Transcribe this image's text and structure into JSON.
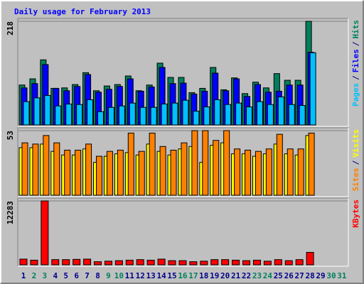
{
  "chart_data": [
    {
      "type": "bar",
      "title": "Daily usage for February 2013",
      "ylim": [
        0,
        218
      ],
      "yticks": [
        218
      ],
      "legend_separator": "/",
      "series": [
        {
          "name": "Hits",
          "color": "#00805c",
          "values": [
            84,
            97,
            137,
            77,
            78,
            85,
            110,
            72,
            82,
            85,
            103,
            72,
            84,
            130,
            100,
            100,
            68,
            77,
            121,
            74,
            99,
            66,
            90,
            78,
            108,
            94,
            94,
            218,
            null,
            null,
            null
          ]
        },
        {
          "name": "Files",
          "color": "#0000ff",
          "values": [
            78,
            87,
            127,
            77,
            72,
            81,
            106,
            69,
            75,
            81,
            97,
            71,
            80,
            121,
            87,
            88,
            65,
            71,
            109,
            72,
            97,
            60,
            85,
            69,
            71,
            84,
            84,
            153,
            null,
            null,
            null
          ]
        },
        {
          "name": "Pages",
          "color": "#00c0ff",
          "values": [
            49,
            57,
            62,
            40,
            44,
            43,
            53,
            28,
            37,
            40,
            46,
            37,
            37,
            44,
            46,
            52,
            29,
            38,
            53,
            43,
            46,
            38,
            49,
            43,
            59,
            43,
            41,
            152,
            null,
            null,
            null
          ]
        }
      ]
    },
    {
      "type": "bar",
      "ylim": [
        0,
        53
      ],
      "yticks": [
        53
      ],
      "legend_separator": "/",
      "series": [
        {
          "name": "Visits",
          "color": "#ffff00",
          "values": [
            39,
            39,
            42,
            36,
            33,
            33,
            38,
            27,
            32,
            34,
            35,
            33,
            42,
            36,
            33,
            38,
            40,
            27,
            41,
            43,
            34,
            34,
            32,
            34,
            42,
            34,
            33,
            49,
            null,
            null,
            null
          ]
        },
        {
          "name": "Sites",
          "color": "#ff8000",
          "values": [
            43,
            42,
            49,
            43,
            37,
            37,
            42,
            32,
            36,
            37,
            51,
            36,
            51,
            40,
            37,
            43,
            53,
            53,
            45,
            53,
            38,
            37,
            36,
            38,
            50,
            38,
            38,
            51,
            null,
            null,
            null
          ]
        }
      ]
    },
    {
      "type": "bar",
      "ylim": [
        0,
        12283
      ],
      "yticks": [
        12283
      ],
      "categories": [
        "1",
        "2",
        "3",
        "4",
        "5",
        "6",
        "7",
        "8",
        "9",
        "10",
        "11",
        "12",
        "13",
        "14",
        "15",
        "16",
        "17",
        "18",
        "19",
        "20",
        "21",
        "22",
        "23",
        "24",
        "25",
        "26",
        "27",
        "28",
        "29",
        "30",
        "31"
      ],
      "category_colors": [
        "#00008b",
        "#00805c",
        "#00805c",
        "#00008b",
        "#00008b",
        "#00008b",
        "#00008b",
        "#00008b",
        "#00805c",
        "#00805c",
        "#00008b",
        "#00008b",
        "#00008b",
        "#00008b",
        "#00008b",
        "#00805c",
        "#00805c",
        "#00008b",
        "#00008b",
        "#00008b",
        "#00008b",
        "#00008b",
        "#00805c",
        "#00805c",
        "#00008b",
        "#00008b",
        "#00008b",
        "#00008b",
        "#00008b",
        "#00805c",
        "#00805c"
      ],
      "series": [
        {
          "name": "KBytes",
          "color": "#ff0000",
          "values": [
            1100,
            900,
            12283,
            1000,
            1000,
            1050,
            1100,
            600,
            700,
            800,
            900,
            1000,
            900,
            1100,
            800,
            800,
            600,
            700,
            1000,
            1000,
            900,
            800,
            900,
            700,
            1000,
            800,
            1000,
            2400,
            null,
            null,
            null
          ]
        }
      ]
    }
  ]
}
